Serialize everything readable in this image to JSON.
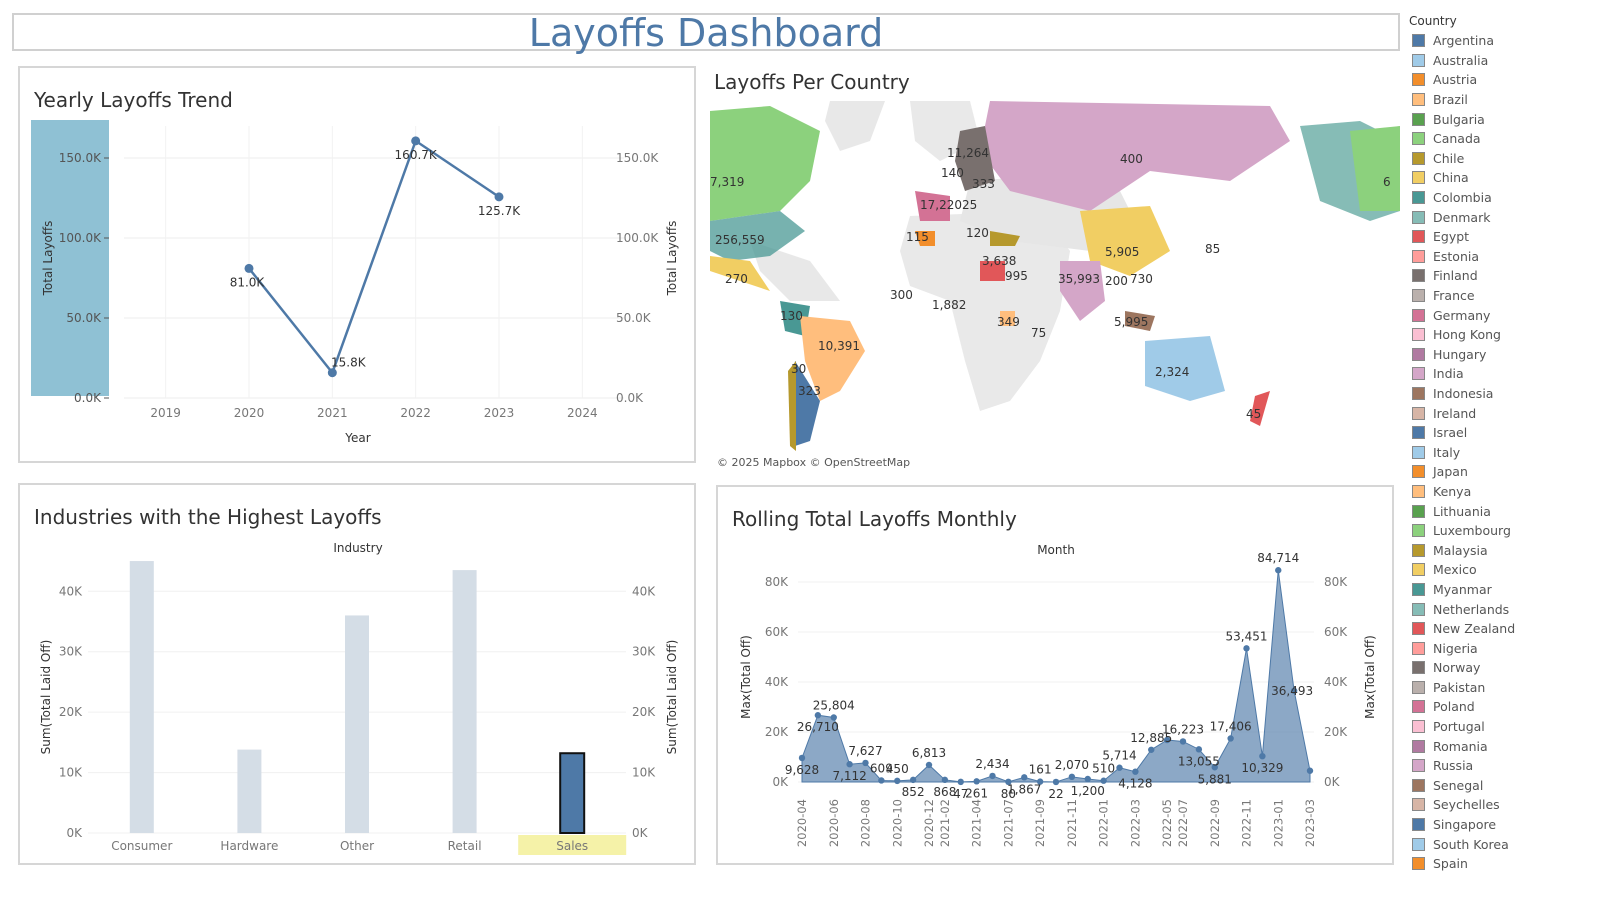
{
  "dashboard": {
    "title": "Layoffs Dashboard"
  },
  "yearly": {
    "title": "Yearly Layoffs Trend",
    "chart_data": {
      "type": "line",
      "xlabel": "Year",
      "ylabel": "Total Layoffs",
      "x_ticks": [
        "2019",
        "2020",
        "2021",
        "2022",
        "2023",
        "2024"
      ],
      "x": [
        2020,
        2021,
        2022,
        2023
      ],
      "values": [
        81000,
        15800,
        160700,
        125700
      ],
      "data_labels": [
        "81.0K",
        "15.8K",
        "160.7K",
        "125.7K"
      ],
      "y_ticks": [
        "0.0K",
        "50.0K",
        "100.0K",
        "150.0K"
      ],
      "ylim": [
        0,
        170000
      ],
      "color": "#4e79a7",
      "highlight_color": "#8fc1d4"
    }
  },
  "country": {
    "title": "Layoffs Per Country",
    "attribution": "© 2025 Mapbox © OpenStreetMap",
    "labels": [
      "400",
      "11,264",
      "140",
      "333",
      "7,319",
      "17,220",
      "25",
      "120",
      "115",
      "256,559",
      "5,905",
      "3,638",
      "995",
      "85",
      "270",
      "35,993",
      "200",
      "730",
      "300",
      "1,882",
      "349",
      "130",
      "10,391",
      "75",
      "5,995",
      "2,324",
      "30",
      "323",
      "45",
      "6"
    ]
  },
  "industry": {
    "title": "Industries with the Highest Layoffs",
    "chart_data": {
      "type": "bar",
      "xlabel": "Industry",
      "ylabel": "Sum(Total Laid Off)",
      "categories": [
        "Consumer",
        "Hardware",
        "Other",
        "Retail",
        "Sales"
      ],
      "values": [
        45000,
        13800,
        36000,
        43500,
        13200
      ],
      "highlighted": "Sales",
      "y_ticks": [
        "0K",
        "10K",
        "20K",
        "30K",
        "40K"
      ],
      "ylim": [
        0,
        46000
      ],
      "bar_color": "#d4dde6",
      "highlight_color": "#4e79a7",
      "highlight_label_bg": "#f5f2a8"
    }
  },
  "rolling": {
    "title": "Rolling Total Layoffs Monthly",
    "chart_data": {
      "type": "area",
      "xlabel": "Month",
      "ylabel": "Max(Total Off)",
      "x_ticks": [
        "2020-04",
        "2020-06",
        "2020-08",
        "2020-10",
        "2020-12",
        "2021-02",
        "2021-04",
        "2021-07",
        "2021-09",
        "2021-11",
        "2022-01",
        "2022-03",
        "2022-05",
        "2022-07",
        "2022-09",
        "2022-11",
        "2023-01",
        "2023-03"
      ],
      "values": [
        9628,
        26710,
        25804,
        7112,
        7627,
        609,
        450,
        852,
        6813,
        868,
        47,
        261,
        2434,
        80,
        1867,
        161,
        22,
        2070,
        1200,
        510,
        5714,
        4128,
        12885,
        16800,
        16223,
        13055,
        5881,
        17406,
        53451,
        10329,
        84714,
        36493,
        4500
      ],
      "data_labels": [
        {
          "i": 0,
          "t": "9,628",
          "pos": "below"
        },
        {
          "i": 1,
          "t": "26,710",
          "pos": "below"
        },
        {
          "i": 2,
          "t": "25,804",
          "pos": "above"
        },
        {
          "i": 3,
          "t": "7,112",
          "pos": "below"
        },
        {
          "i": 4,
          "t": "7,627",
          "pos": "above"
        },
        {
          "i": 5,
          "t": "609",
          "pos": "above"
        },
        {
          "i": 6,
          "t": "450",
          "pos": "above"
        },
        {
          "i": 7,
          "t": "852",
          "pos": "below"
        },
        {
          "i": 8,
          "t": "6,813",
          "pos": "above"
        },
        {
          "i": 9,
          "t": "868",
          "pos": "below"
        },
        {
          "i": 10,
          "t": "47",
          "pos": "below"
        },
        {
          "i": 11,
          "t": "261",
          "pos": "below"
        },
        {
          "i": 12,
          "t": "2,434",
          "pos": "above"
        },
        {
          "i": 13,
          "t": "80",
          "pos": "below"
        },
        {
          "i": 14,
          "t": "1,867",
          "pos": "below"
        },
        {
          "i": 15,
          "t": "161",
          "pos": "above"
        },
        {
          "i": 16,
          "t": "22",
          "pos": "below"
        },
        {
          "i": 17,
          "t": "2,070",
          "pos": "above"
        },
        {
          "i": 18,
          "t": "1,200",
          "pos": "below"
        },
        {
          "i": 19,
          "t": "510",
          "pos": "above"
        },
        {
          "i": 20,
          "t": "5,714",
          "pos": "above"
        },
        {
          "i": 21,
          "t": "4,128",
          "pos": "below"
        },
        {
          "i": 22,
          "t": "12,885",
          "pos": "above"
        },
        {
          "i": 25,
          "t": "13,055",
          "pos": "below"
        },
        {
          "i": 24,
          "t": "16,223",
          "pos": "above"
        },
        {
          "i": 26,
          "t": "5,881",
          "pos": "below"
        },
        {
          "i": 27,
          "t": "17,406",
          "pos": "above"
        },
        {
          "i": 28,
          "t": "53,451",
          "pos": "above"
        },
        {
          "i": 29,
          "t": "10,329",
          "pos": "below"
        },
        {
          "i": 30,
          "t": "84,714",
          "pos": "above"
        },
        {
          "i": 31,
          "t": "36,493",
          "pos": "left"
        }
      ],
      "y_ticks": [
        "0K",
        "20K",
        "40K",
        "60K",
        "80K"
      ],
      "ylim": [
        0,
        88000
      ],
      "color": "#4e79a7"
    }
  },
  "legend": {
    "title": "Country",
    "items": [
      {
        "name": "Argentina",
        "color": "#4e79a7"
      },
      {
        "name": "Australia",
        "color": "#a0cbe8"
      },
      {
        "name": "Austria",
        "color": "#f28e2b"
      },
      {
        "name": "Brazil",
        "color": "#ffbe7d"
      },
      {
        "name": "Bulgaria",
        "color": "#59a14f"
      },
      {
        "name": "Canada",
        "color": "#8cd17d"
      },
      {
        "name": "Chile",
        "color": "#b6992d"
      },
      {
        "name": "China",
        "color": "#f1ce63"
      },
      {
        "name": "Colombia",
        "color": "#499894"
      },
      {
        "name": "Denmark",
        "color": "#86bcb6"
      },
      {
        "name": "Egypt",
        "color": "#e15759"
      },
      {
        "name": "Estonia",
        "color": "#ff9d9a"
      },
      {
        "name": "Finland",
        "color": "#79706e"
      },
      {
        "name": "France",
        "color": "#bab0ac"
      },
      {
        "name": "Germany",
        "color": "#d37295"
      },
      {
        "name": "Hong Kong",
        "color": "#fabfd2"
      },
      {
        "name": "Hungary",
        "color": "#b07aa1"
      },
      {
        "name": "India",
        "color": "#d4a6c8"
      },
      {
        "name": "Indonesia",
        "color": "#9d7660"
      },
      {
        "name": "Ireland",
        "color": "#d7b5a6"
      },
      {
        "name": "Israel",
        "color": "#4e79a7"
      },
      {
        "name": "Italy",
        "color": "#a0cbe8"
      },
      {
        "name": "Japan",
        "color": "#f28e2b"
      },
      {
        "name": "Kenya",
        "color": "#ffbe7d"
      },
      {
        "name": "Lithuania",
        "color": "#59a14f"
      },
      {
        "name": "Luxembourg",
        "color": "#8cd17d"
      },
      {
        "name": "Malaysia",
        "color": "#b6992d"
      },
      {
        "name": "Mexico",
        "color": "#f1ce63"
      },
      {
        "name": "Myanmar",
        "color": "#499894"
      },
      {
        "name": "Netherlands",
        "color": "#86bcb6"
      },
      {
        "name": "New Zealand",
        "color": "#e15759"
      },
      {
        "name": "Nigeria",
        "color": "#ff9d9a"
      },
      {
        "name": "Norway",
        "color": "#79706e"
      },
      {
        "name": "Pakistan",
        "color": "#bab0ac"
      },
      {
        "name": "Poland",
        "color": "#d37295"
      },
      {
        "name": "Portugal",
        "color": "#fabfd2"
      },
      {
        "name": "Romania",
        "color": "#b07aa1"
      },
      {
        "name": "Russia",
        "color": "#d4a6c8"
      },
      {
        "name": "Senegal",
        "color": "#9d7660"
      },
      {
        "name": "Seychelles",
        "color": "#d7b5a6"
      },
      {
        "name": "Singapore",
        "color": "#4e79a7"
      },
      {
        "name": "South Korea",
        "color": "#a0cbe8"
      },
      {
        "name": "Spain",
        "color": "#f28e2b"
      }
    ]
  }
}
